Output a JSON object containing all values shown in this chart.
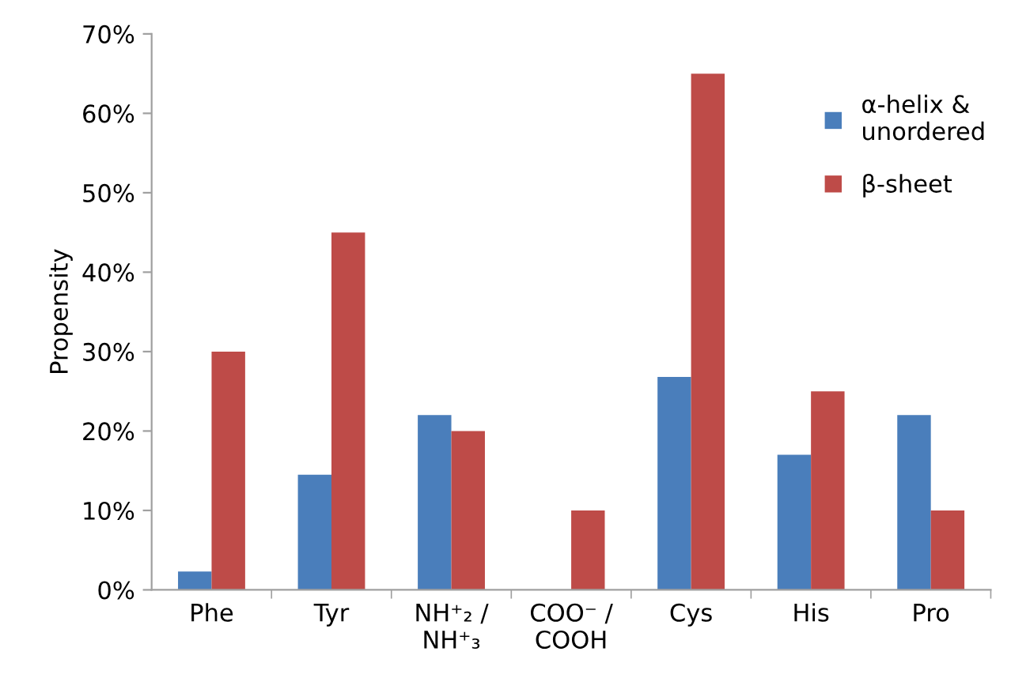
{
  "chart_data": {
    "type": "bar",
    "ylabel": "Propensity",
    "categories": [
      "Phe",
      "Tyr",
      "NH⁺₂ /\nNH⁺₃",
      "COO⁻ /\nCOOH",
      "Cys",
      "His",
      "Pro"
    ],
    "series": [
      {
        "name": "α-helix &\nunordered",
        "color": "#4a7ebb",
        "values": [
          2.3,
          14.5,
          22,
          0,
          26.8,
          17,
          22
        ]
      },
      {
        "name": "β-sheet",
        "color": "#be4b48",
        "values": [
          30,
          45,
          20,
          10,
          65,
          25,
          10
        ]
      }
    ],
    "ylim": [
      0,
      70
    ],
    "yticks": [
      {
        "value": 0,
        "label": "0%"
      },
      {
        "value": 10,
        "label": "10%"
      },
      {
        "value": 20,
        "label": "20%"
      },
      {
        "value": 30,
        "label": "30%"
      },
      {
        "value": 40,
        "label": "40%"
      },
      {
        "value": 50,
        "label": "50%"
      },
      {
        "value": 60,
        "label": "60%"
      },
      {
        "value": 70,
        "label": "70%"
      }
    ],
    "grid": false,
    "legend": "top right"
  }
}
